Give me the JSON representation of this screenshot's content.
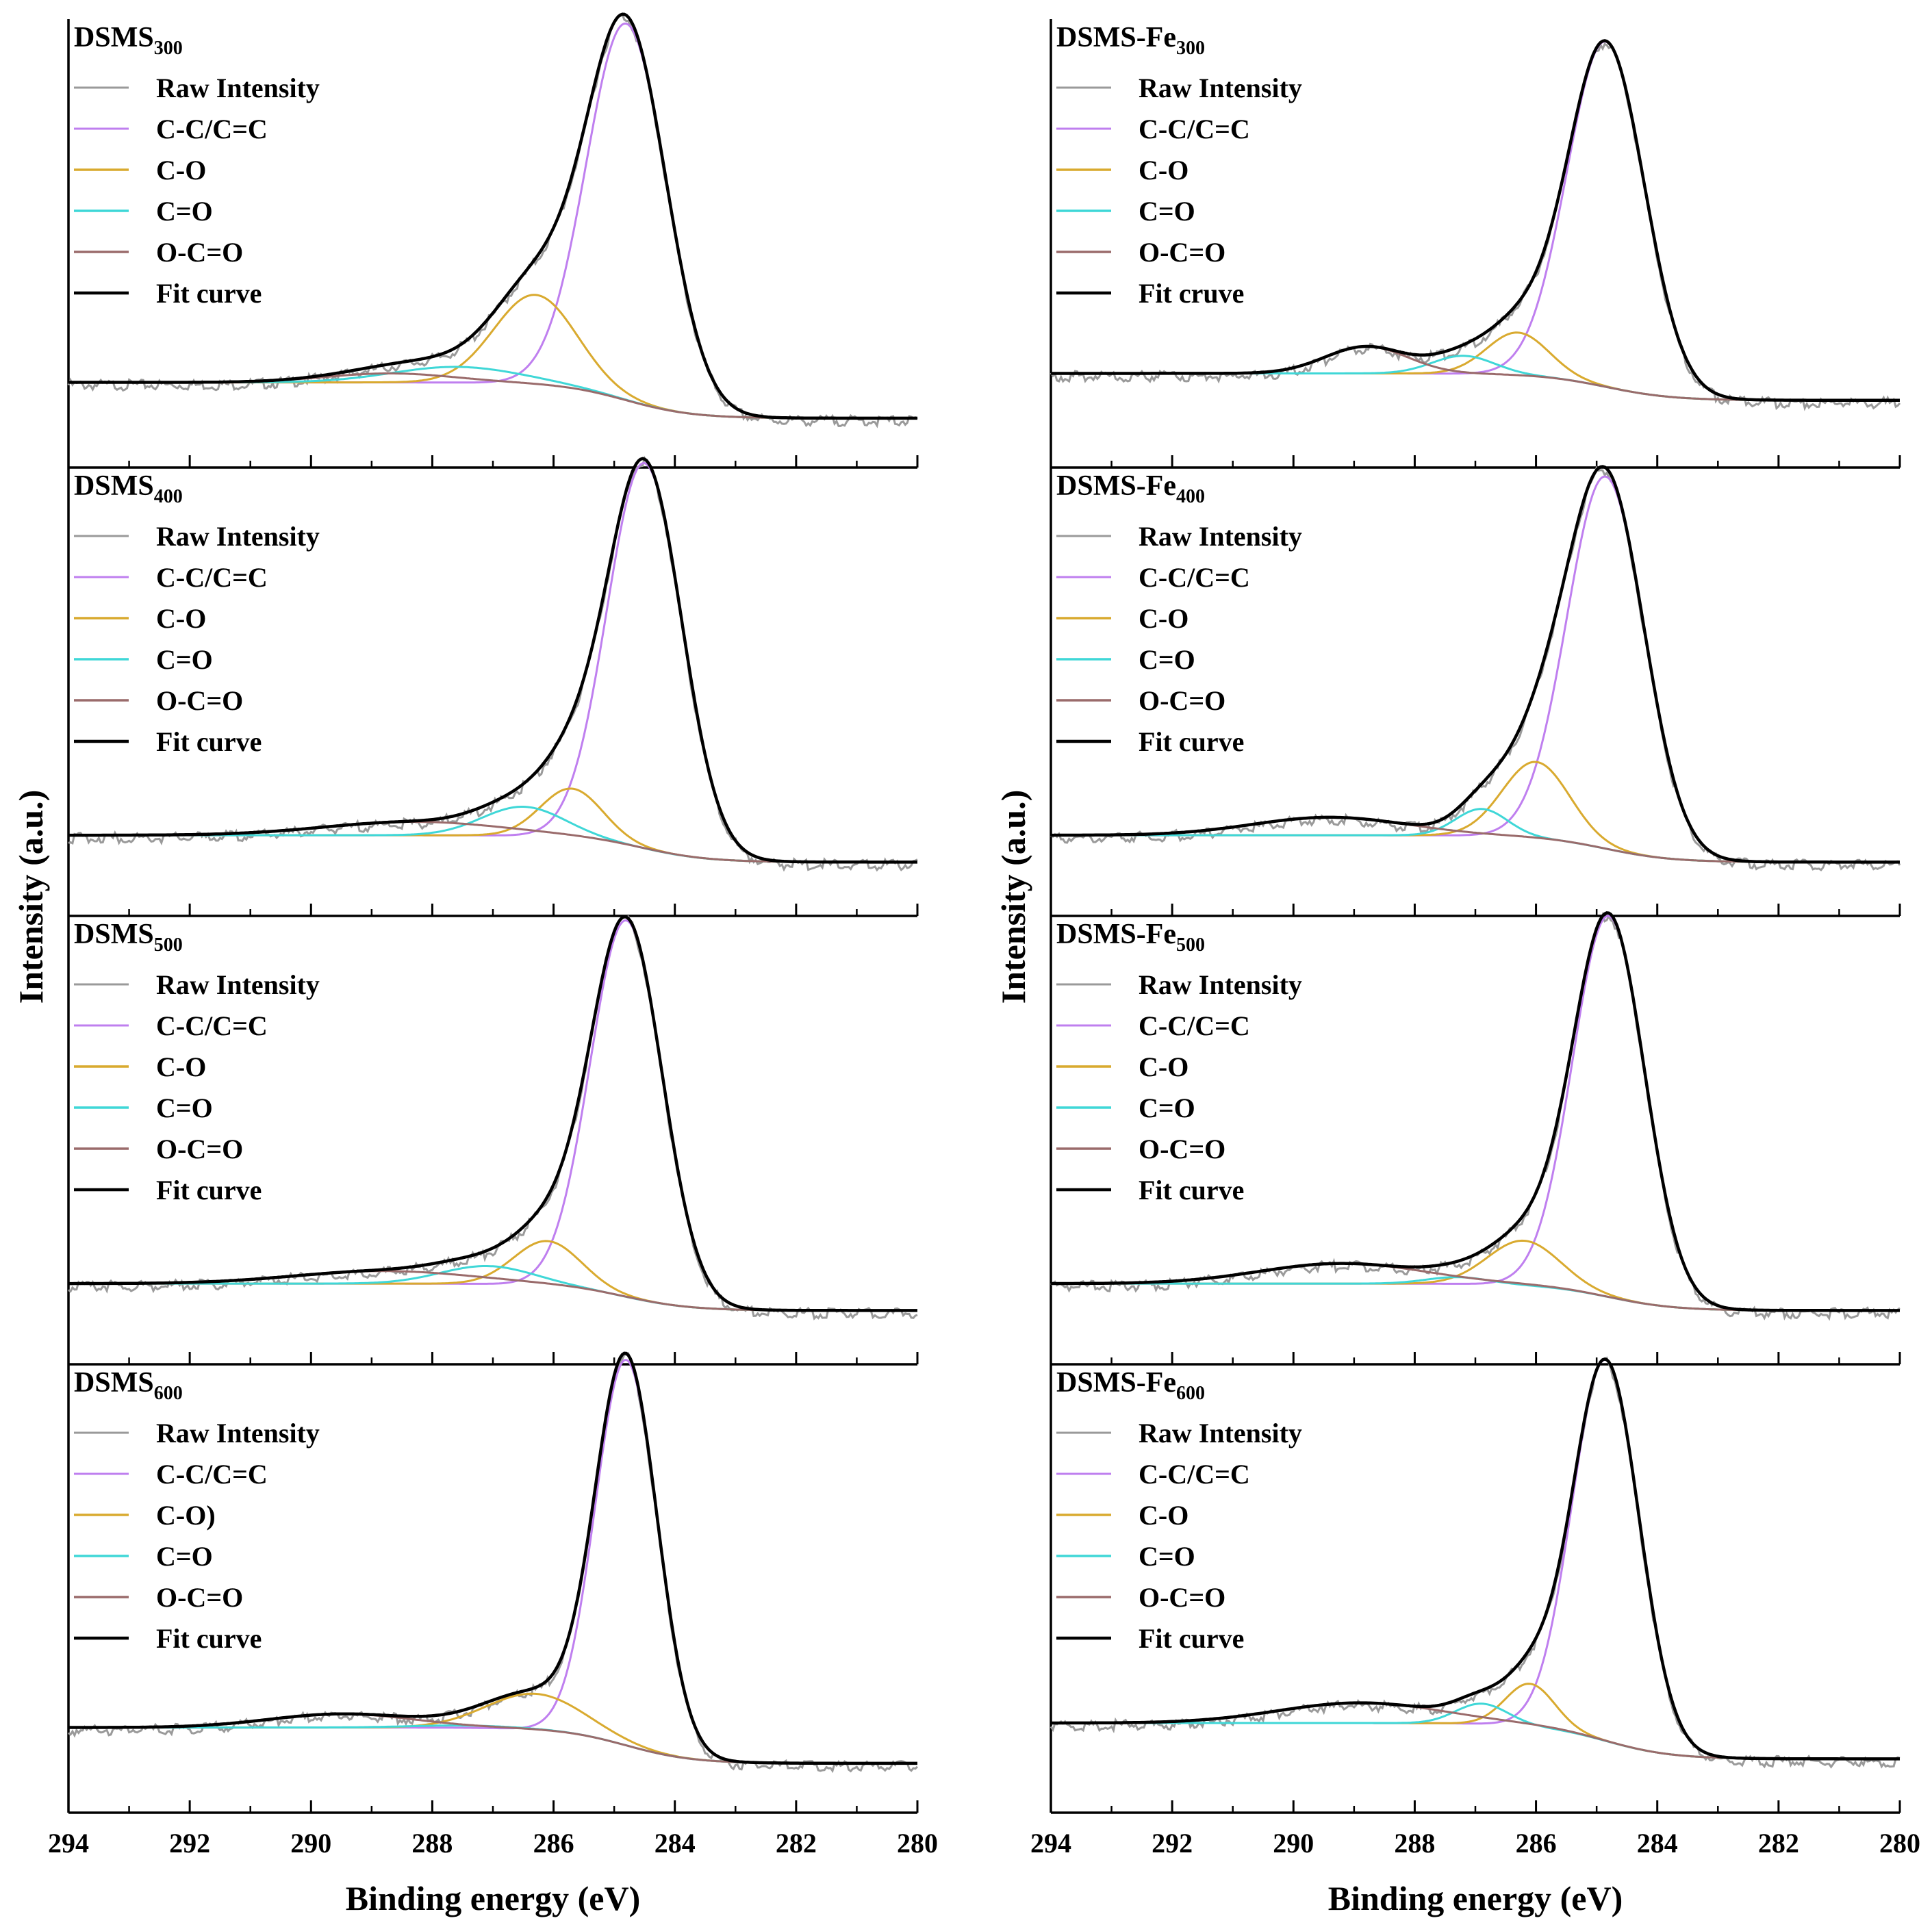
{
  "figure": {
    "ylabel": "Intensity (a.u.)",
    "xlabel": "Binding energy (eV)",
    "colors": {
      "raw": "#9a9a9a",
      "cc": "#bf7fef",
      "co": "#d9aa2f",
      "c_double_o": "#3fd7d7",
      "oco": "#9a6b6b",
      "fit": "#000000",
      "axis": "#000000"
    }
  },
  "chart_data": [
    {
      "type": "line",
      "panel": "left-1",
      "title_main": "DSMS",
      "title_sub": "300",
      "xlabel": "",
      "ylabel": "Intensity (a.u.)",
      "xlim": [
        294,
        280
      ],
      "ylim": [
        0,
        1
      ],
      "legend": [
        "Raw Intensity",
        "C-C/C=C",
        "C-O",
        "C=O",
        "O-C=O",
        "Fit curve"
      ],
      "legend_position": "top-left",
      "baseline": {
        "y_high": 0.19,
        "y_low": 0.11
      },
      "peaks": {
        "cc": {
          "center": 284.8,
          "amplitude": 0.84,
          "fwhm": 1.55
        },
        "co": {
          "center": 286.3,
          "amplitude": 0.2,
          "fwhm": 1.6
        },
        "c_double_o": {
          "center": 287.6,
          "amplitude": 0.035,
          "fwhm": 2.5
        },
        "oco": {
          "center": 288.7,
          "amplitude": 0.02,
          "fwhm": 2.5
        }
      }
    },
    {
      "type": "line",
      "panel": "left-2",
      "title_main": "DSMS",
      "title_sub": "400",
      "xlabel": "",
      "ylabel": "Intensity (a.u.)",
      "xlim": [
        294,
        280
      ],
      "ylim": [
        0,
        1
      ],
      "legend": [
        "Raw Intensity",
        "C-C/C=C",
        "C-O",
        "C=O",
        "O-C=O",
        "Fit curve"
      ],
      "legend_position": "top-left",
      "baseline": {
        "y_high": 0.18,
        "y_low": 0.12
      },
      "peaks": {
        "cc": {
          "center": 284.5,
          "amplitude": 0.86,
          "fwhm": 1.45
        },
        "co": {
          "center": 285.7,
          "amplitude": 0.11,
          "fwhm": 1.2
        },
        "c_double_o": {
          "center": 286.5,
          "amplitude": 0.065,
          "fwhm": 1.6
        },
        "oco": {
          "center": 288.3,
          "amplitude": 0.03,
          "fwhm": 3.5
        }
      }
    },
    {
      "type": "line",
      "panel": "left-3",
      "title_main": "DSMS",
      "title_sub": "500",
      "xlabel": "",
      "ylabel": "Intensity (a.u.)",
      "xlim": [
        294,
        280
      ],
      "ylim": [
        0,
        1
      ],
      "legend": [
        "Raw Intensity",
        "C-C/C=C",
        "C-O",
        "C=O",
        "O-C=O",
        "Fit curve"
      ],
      "legend_position": "top-left",
      "baseline": {
        "y_high": 0.18,
        "y_low": 0.12
      },
      "peaks": {
        "cc": {
          "center": 284.8,
          "amplitude": 0.84,
          "fwhm": 1.4
        },
        "co": {
          "center": 286.1,
          "amplitude": 0.1,
          "fwhm": 1.3
        },
        "c_double_o": {
          "center": 287.1,
          "amplitude": 0.04,
          "fwhm": 1.8
        },
        "oco": {
          "center": 288.8,
          "amplitude": 0.028,
          "fwhm": 3.5
        }
      }
    },
    {
      "type": "line",
      "panel": "left-4",
      "title_main": "DSMS",
      "title_sub": "600",
      "xlabel": "Binding energy (eV)",
      "ylabel": "Intensity (a.u.)",
      "xlim": [
        294,
        280
      ],
      "ylim": [
        0,
        1
      ],
      "x_ticks": [
        294,
        292,
        290,
        288,
        286,
        284,
        282,
        280
      ],
      "legend": [
        "Raw Intensity",
        "C-C/C=C",
        "C-O)",
        "C=O",
        "O-C=O",
        "Fit curve"
      ],
      "legend_position": "top-left",
      "baseline": {
        "y_high": 0.19,
        "y_low": 0.11
      },
      "peaks": {
        "cc": {
          "center": 284.8,
          "amplitude": 0.86,
          "fwhm": 1.2
        },
        "co": {
          "center": 286.3,
          "amplitude": 0.08,
          "fwhm": 1.9
        },
        "c_double_o": {
          "center": 287.5,
          "amplitude": 0.005,
          "fwhm": 2.0
        },
        "oco": {
          "center": 289.5,
          "amplitude": 0.03,
          "fwhm": 2.8
        }
      }
    },
    {
      "type": "line",
      "panel": "right-1",
      "title_main": "DSMS-Fe",
      "title_sub": "300",
      "xlabel": "",
      "ylabel": "Intensity (a.u.)",
      "xlim": [
        294,
        280
      ],
      "ylim": [
        0,
        1
      ],
      "legend": [
        "Raw Intensity",
        "C-C/C=C",
        "C-O",
        "C=O",
        "O-C=O",
        "Fit cruve"
      ],
      "legend_position": "top-left",
      "baseline": {
        "y_high": 0.21,
        "y_low": 0.15
      },
      "peaks": {
        "cc": {
          "center": 284.85,
          "amplitude": 0.77,
          "fwhm": 1.5
        },
        "co": {
          "center": 286.3,
          "amplitude": 0.095,
          "fwhm": 1.2
        },
        "c_double_o": {
          "center": 287.2,
          "amplitude": 0.04,
          "fwhm": 1.2
        },
        "oco": {
          "center": 288.8,
          "amplitude": 0.06,
          "fwhm": 1.6
        }
      }
    },
    {
      "type": "line",
      "panel": "right-2",
      "title_main": "DSMS-Fe",
      "title_sub": "400",
      "xlabel": "",
      "ylabel": "Intensity (a.u.)",
      "xlim": [
        294,
        280
      ],
      "ylim": [
        0,
        1
      ],
      "legend": [
        "Raw Intensity",
        "C-C/C=C",
        "C-O",
        "C=O",
        "O-C=O",
        "Fit curve"
      ],
      "legend_position": "top-left",
      "baseline": {
        "y_high": 0.18,
        "y_low": 0.12
      },
      "peaks": {
        "cc": {
          "center": 284.85,
          "amplitude": 0.83,
          "fwhm": 1.5
        },
        "co": {
          "center": 286.0,
          "amplitude": 0.17,
          "fwhm": 1.3
        },
        "c_double_o": {
          "center": 286.9,
          "amplitude": 0.06,
          "fwhm": 1.0
        },
        "oco": {
          "center": 289.4,
          "amplitude": 0.04,
          "fwhm": 3.0
        }
      }
    },
    {
      "type": "line",
      "panel": "right-3",
      "title_main": "DSMS-Fe",
      "title_sub": "500",
      "xlabel": "",
      "ylabel": "Intensity (a.u.)",
      "xlim": [
        294,
        280
      ],
      "ylim": [
        0,
        1
      ],
      "legend": [
        "Raw Intensity",
        "C-C/C=C",
        "C-O",
        "C=O",
        "O-C=O",
        "Fit curve"
      ],
      "legend_position": "top-left",
      "baseline": {
        "y_high": 0.18,
        "y_low": 0.12
      },
      "peaks": {
        "cc": {
          "center": 284.8,
          "amplitude": 0.85,
          "fwhm": 1.4
        },
        "co": {
          "center": 286.2,
          "amplitude": 0.1,
          "fwhm": 1.4
        },
        "c_double_o": {
          "center": 287.3,
          "amplitude": 0.015,
          "fwhm": 1.2
        },
        "oco": {
          "center": 289.2,
          "amplitude": 0.045,
          "fwhm": 3.2
        }
      }
    },
    {
      "type": "line",
      "panel": "right-4",
      "title_main": "DSMS-Fe",
      "title_sub": "600",
      "xlabel": "Binding energy (eV)",
      "ylabel": "Intensity (a.u.)",
      "xlim": [
        294,
        280
      ],
      "ylim": [
        0,
        1
      ],
      "x_ticks": [
        294,
        292,
        290,
        288,
        286,
        284,
        282,
        280
      ],
      "legend": [
        "Raw Intensity",
        "C-C/C=C",
        "C-O",
        "C=O",
        "O-C=O",
        "Fit curve"
      ],
      "legend_position": "top-left",
      "baseline": {
        "y_high": 0.2,
        "y_low": 0.12
      },
      "peaks": {
        "cc": {
          "center": 284.85,
          "amplitude": 0.85,
          "fwhm": 1.3
        },
        "co": {
          "center": 286.1,
          "amplitude": 0.095,
          "fwhm": 0.95
        },
        "c_double_o": {
          "center": 286.9,
          "amplitude": 0.045,
          "fwhm": 1.0
        },
        "oco": {
          "center": 288.9,
          "amplitude": 0.045,
          "fwhm": 3.2
        }
      }
    }
  ]
}
